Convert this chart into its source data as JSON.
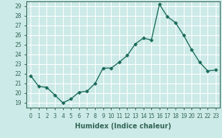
{
  "x": [
    0,
    1,
    2,
    3,
    4,
    5,
    6,
    7,
    8,
    9,
    10,
    11,
    12,
    13,
    14,
    15,
    16,
    17,
    18,
    19,
    20,
    21,
    22,
    23
  ],
  "y": [
    21.8,
    20.7,
    20.6,
    19.8,
    19.0,
    19.4,
    20.1,
    20.2,
    21.0,
    22.6,
    22.6,
    23.2,
    23.9,
    25.1,
    25.7,
    25.5,
    29.2,
    27.9,
    27.3,
    26.0,
    24.5,
    23.2,
    22.3,
    22.4
  ],
  "line_color": "#1a6b5a",
  "marker": "D",
  "marker_size": 2.5,
  "linewidth": 1.0,
  "xlabel": "Humidex (Indice chaleur)",
  "xlim": [
    -0.5,
    23.5
  ],
  "ylim": [
    18.5,
    29.5
  ],
  "yticks": [
    19,
    20,
    21,
    22,
    23,
    24,
    25,
    26,
    27,
    28,
    29
  ],
  "xticks": [
    0,
    1,
    2,
    3,
    4,
    5,
    6,
    7,
    8,
    9,
    10,
    11,
    12,
    13,
    14,
    15,
    16,
    17,
    18,
    19,
    20,
    21,
    22,
    23
  ],
  "xtick_labels": [
    "0",
    "1",
    "2",
    "3",
    "4",
    "5",
    "6",
    "7",
    "8",
    "9",
    "10",
    "11",
    "12",
    "13",
    "14",
    "15",
    "16",
    "17",
    "18",
    "19",
    "20",
    "21",
    "22",
    "23"
  ],
  "background_color": "#cceae7",
  "grid_color": "#ffffff",
  "tick_fontsize": 5.5,
  "xlabel_fontsize": 7,
  "xlabel_fontweight": "bold",
  "axis_color": "#336655"
}
